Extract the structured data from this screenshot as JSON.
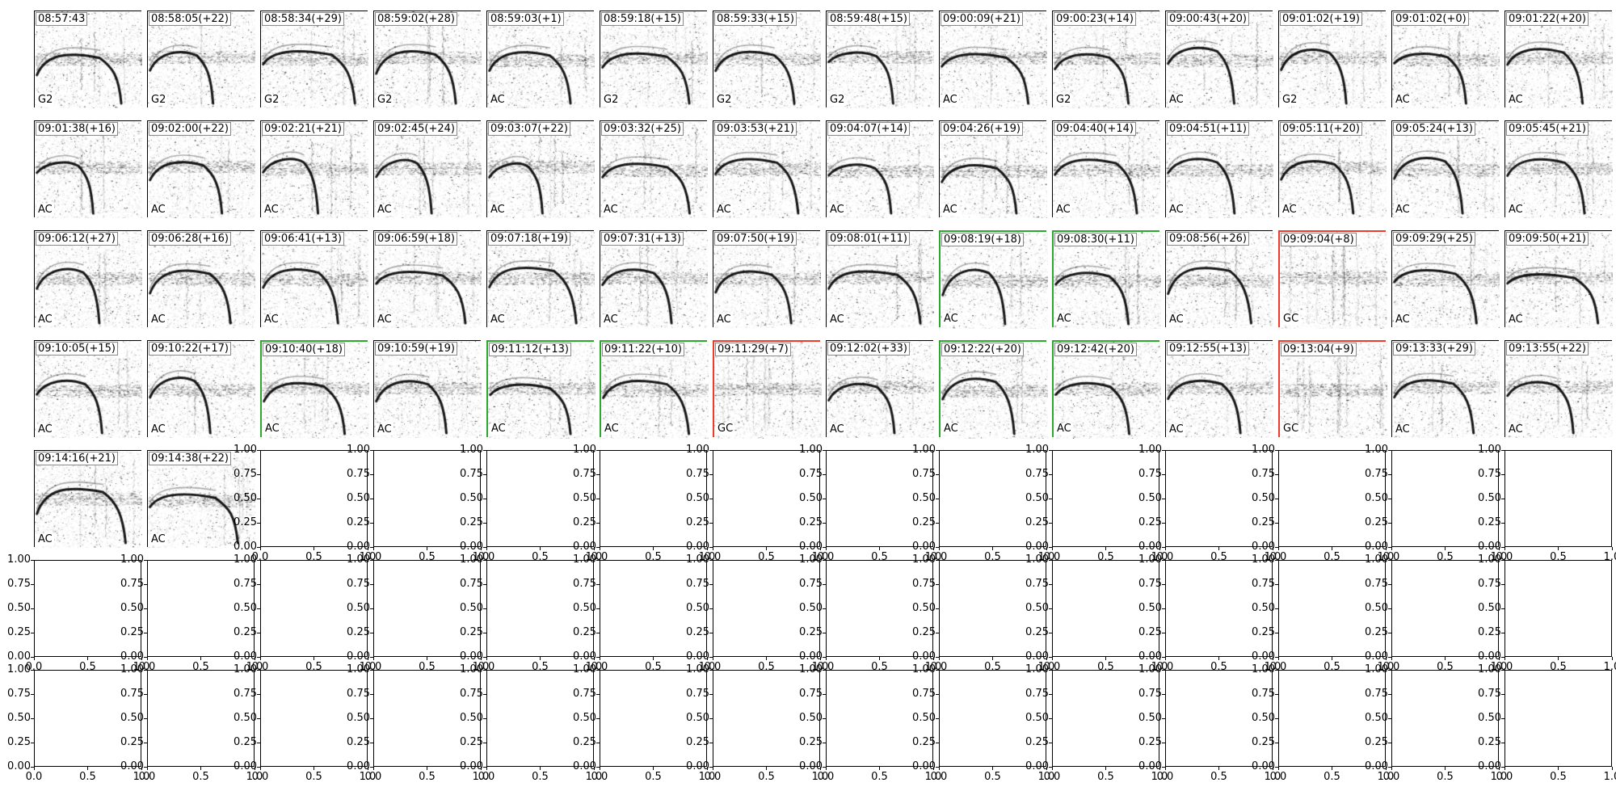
{
  "figure": {
    "background": "#ffffff",
    "rows": 7,
    "cols": 14,
    "colors": {
      "border_default": "#000000",
      "border_green": "#2ca82c",
      "border_red": "#ef3b2c",
      "ink": "#000000"
    }
  },
  "chart_data": {
    "type": "heatmap",
    "title": "",
    "layout": "7x14 grid of spectrogram thumbnails; titles are event start times with (+gap seconds); bottom-left code is the call class; green/red outlines mark flagged panels; remaining axes are empty with default 0-1 ticks",
    "panels": [
      {
        "time": "08:57:43",
        "label": "G2",
        "border": "default"
      },
      {
        "time": "08:58:05(+22)",
        "label": "G2",
        "border": "default"
      },
      {
        "time": "08:58:34(+29)",
        "label": "G2",
        "border": "default"
      },
      {
        "time": "08:59:02(+28)",
        "label": "G2",
        "border": "default"
      },
      {
        "time": "08:59:03(+1)",
        "label": "AC",
        "border": "default"
      },
      {
        "time": "08:59:18(+15)",
        "label": "G2",
        "border": "default"
      },
      {
        "time": "08:59:33(+15)",
        "label": "G2",
        "border": "default"
      },
      {
        "time": "08:59:48(+15)",
        "label": "G2",
        "border": "default"
      },
      {
        "time": "09:00:09(+21)",
        "label": "AC",
        "border": "default"
      },
      {
        "time": "09:00:23(+14)",
        "label": "G2",
        "border": "default"
      },
      {
        "time": "09:00:43(+20)",
        "label": "AC",
        "border": "default"
      },
      {
        "time": "09:01:02(+19)",
        "label": "G2",
        "border": "default"
      },
      {
        "time": "09:01:02(+0)",
        "label": "AC",
        "border": "default"
      },
      {
        "time": "09:01:22(+20)",
        "label": "AC",
        "border": "default"
      },
      {
        "time": "09:01:38(+16)",
        "label": "AC",
        "border": "default"
      },
      {
        "time": "09:02:00(+22)",
        "label": "AC",
        "border": "default"
      },
      {
        "time": "09:02:21(+21)",
        "label": "AC",
        "border": "default"
      },
      {
        "time": "09:02:45(+24)",
        "label": "AC",
        "border": "default"
      },
      {
        "time": "09:03:07(+22)",
        "label": "AC",
        "border": "default"
      },
      {
        "time": "09:03:32(+25)",
        "label": "AC",
        "border": "default"
      },
      {
        "time": "09:03:53(+21)",
        "label": "AC",
        "border": "default"
      },
      {
        "time": "09:04:07(+14)",
        "label": "AC",
        "border": "default"
      },
      {
        "time": "09:04:26(+19)",
        "label": "AC",
        "border": "default"
      },
      {
        "time": "09:04:40(+14)",
        "label": "AC",
        "border": "default"
      },
      {
        "time": "09:04:51(+11)",
        "label": "AC",
        "border": "default"
      },
      {
        "time": "09:05:11(+20)",
        "label": "AC",
        "border": "default"
      },
      {
        "time": "09:05:24(+13)",
        "label": "AC",
        "border": "default"
      },
      {
        "time": "09:05:45(+21)",
        "label": "AC",
        "border": "default"
      },
      {
        "time": "09:06:12(+27)",
        "label": "AC",
        "border": "default"
      },
      {
        "time": "09:06:28(+16)",
        "label": "AC",
        "border": "default"
      },
      {
        "time": "09:06:41(+13)",
        "label": "AC",
        "border": "default"
      },
      {
        "time": "09:06:59(+18)",
        "label": "AC",
        "border": "default"
      },
      {
        "time": "09:07:18(+19)",
        "label": "AC",
        "border": "default"
      },
      {
        "time": "09:07:31(+13)",
        "label": "AC",
        "border": "default"
      },
      {
        "time": "09:07:50(+19)",
        "label": "AC",
        "border": "default"
      },
      {
        "time": "09:08:01(+11)",
        "label": "AC",
        "border": "default"
      },
      {
        "time": "09:08:19(+18)",
        "label": "AC",
        "border": "green"
      },
      {
        "time": "09:08:30(+11)",
        "label": "AC",
        "border": "green"
      },
      {
        "time": "09:08:56(+26)",
        "label": "AC",
        "border": "default"
      },
      {
        "time": "09:09:04(+8)",
        "label": "GC",
        "border": "red"
      },
      {
        "time": "09:09:29(+25)",
        "label": "AC",
        "border": "default"
      },
      {
        "time": "09:09:50(+21)",
        "label": "AC",
        "border": "default"
      },
      {
        "time": "09:10:05(+15)",
        "label": "AC",
        "border": "default"
      },
      {
        "time": "09:10:22(+17)",
        "label": "AC",
        "border": "default"
      },
      {
        "time": "09:10:40(+18)",
        "label": "AC",
        "border": "green"
      },
      {
        "time": "09:10:59(+19)",
        "label": "AC",
        "border": "default"
      },
      {
        "time": "09:11:12(+13)",
        "label": "AC",
        "border": "green"
      },
      {
        "time": "09:11:22(+10)",
        "label": "AC",
        "border": "green"
      },
      {
        "time": "09:11:29(+7)",
        "label": "GC",
        "border": "red"
      },
      {
        "time": "09:12:02(+33)",
        "label": "AC",
        "border": "default"
      },
      {
        "time": "09:12:22(+20)",
        "label": "AC",
        "border": "green"
      },
      {
        "time": "09:12:42(+20)",
        "label": "AC",
        "border": "green"
      },
      {
        "time": "09:12:55(+13)",
        "label": "AC",
        "border": "default"
      },
      {
        "time": "09:13:04(+9)",
        "label": "GC",
        "border": "red"
      },
      {
        "time": "09:13:33(+29)",
        "label": "AC",
        "border": "default"
      },
      {
        "time": "09:13:55(+22)",
        "label": "AC",
        "border": "default"
      },
      {
        "time": "09:14:16(+21)",
        "label": "AC",
        "border": "default"
      },
      {
        "time": "09:14:38(+22)",
        "label": "AC",
        "border": "default"
      }
    ],
    "empty_axes": {
      "count": 40,
      "yticks": [
        "1.00",
        "0.75",
        "0.50",
        "0.25",
        "0.00"
      ],
      "xticks": [
        "0.0",
        "0.5",
        "1.0"
      ],
      "ylim": [
        0,
        1
      ],
      "xlim": [
        0,
        1
      ]
    }
  }
}
